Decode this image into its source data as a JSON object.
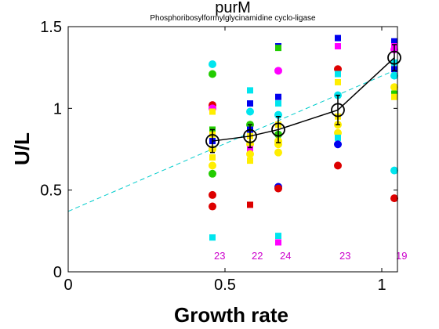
{
  "chart_data": {
    "type": "scatter",
    "title": "purM",
    "subtitle": "Phosphoribosylformylglycinamidine cyclo-ligase",
    "xlabel": "Growth rate",
    "ylabel": "U/L",
    "xlim": [
      0,
      1.05
    ],
    "ylim": [
      0,
      1.5
    ],
    "xticks": [
      0,
      0.5,
      1
    ],
    "xtick_labels": [
      "0",
      "0.5",
      "1"
    ],
    "yticks": [
      0,
      0.5,
      1,
      1.5
    ],
    "ytick_labels": [
      "0",
      "0.5",
      "1",
      "1.5"
    ],
    "grid": false,
    "legend": "none",
    "mean_line": {
      "x": [
        0.46,
        0.58,
        0.67,
        0.86,
        1.04
      ],
      "y": [
        0.8,
        0.83,
        0.87,
        0.99,
        1.31
      ],
      "err": [
        0.07,
        0.07,
        0.08,
        0.09,
        0.08
      ],
      "color": "#000000"
    },
    "fit_line": {
      "x": [
        0,
        1.05
      ],
      "y": [
        0.37,
        1.24
      ],
      "color": "#00cccc"
    },
    "counts": {
      "x": [
        0.46,
        0.58,
        0.67,
        0.86,
        1.04
      ],
      "labels": [
        "23",
        "22",
        "24",
        "23",
        "19"
      ],
      "y": 0.1,
      "color": "#cc00cc"
    },
    "points": [
      {
        "x": 0.46,
        "y": 1.27,
        "shape": "circle",
        "color": "#00e5ee"
      },
      {
        "x": 0.46,
        "y": 1.21,
        "shape": "circle",
        "color": "#22cc00"
      },
      {
        "x": 0.46,
        "y": 1.02,
        "shape": "circle",
        "color": "#dd0000"
      },
      {
        "x": 0.46,
        "y": 1.0,
        "shape": "circle",
        "color": "#ff00ff"
      },
      {
        "x": 0.46,
        "y": 0.98,
        "shape": "square",
        "color": "#ffee00"
      },
      {
        "x": 0.46,
        "y": 0.87,
        "shape": "square",
        "color": "#22cc00"
      },
      {
        "x": 0.46,
        "y": 0.84,
        "shape": "square",
        "color": "#ffee00"
      },
      {
        "x": 0.46,
        "y": 0.8,
        "shape": "square",
        "color": "#0000ee"
      },
      {
        "x": 0.46,
        "y": 0.75,
        "shape": "circle",
        "color": "#ffee00"
      },
      {
        "x": 0.46,
        "y": 0.7,
        "shape": "square",
        "color": "#ffee00"
      },
      {
        "x": 0.46,
        "y": 0.65,
        "shape": "circle",
        "color": "#ffee00"
      },
      {
        "x": 0.46,
        "y": 0.6,
        "shape": "circle",
        "color": "#22cc00"
      },
      {
        "x": 0.46,
        "y": 0.47,
        "shape": "circle",
        "color": "#dd0000"
      },
      {
        "x": 0.46,
        "y": 0.4,
        "shape": "circle",
        "color": "#dd0000"
      },
      {
        "x": 0.46,
        "y": 0.21,
        "shape": "square",
        "color": "#00e5ee"
      },
      {
        "x": 0.58,
        "y": 1.11,
        "shape": "square",
        "color": "#00e5ee"
      },
      {
        "x": 0.58,
        "y": 1.03,
        "shape": "square",
        "color": "#0000ee"
      },
      {
        "x": 0.58,
        "y": 0.98,
        "shape": "circle",
        "color": "#00e5ee"
      },
      {
        "x": 0.58,
        "y": 0.9,
        "shape": "circle",
        "color": "#22cc00"
      },
      {
        "x": 0.58,
        "y": 0.87,
        "shape": "square",
        "color": "#0000ee"
      },
      {
        "x": 0.58,
        "y": 0.83,
        "shape": "square",
        "color": "#ffee00"
      },
      {
        "x": 0.58,
        "y": 0.78,
        "shape": "circle",
        "color": "#ffee00"
      },
      {
        "x": 0.58,
        "y": 0.75,
        "shape": "square",
        "color": "#ff00ff"
      },
      {
        "x": 0.58,
        "y": 0.72,
        "shape": "circle",
        "color": "#ffee00"
      },
      {
        "x": 0.58,
        "y": 0.68,
        "shape": "square",
        "color": "#ffee00"
      },
      {
        "x": 0.58,
        "y": 0.41,
        "shape": "square",
        "color": "#dd0000"
      },
      {
        "x": 0.67,
        "y": 1.38,
        "shape": "square",
        "color": "#0000ee"
      },
      {
        "x": 0.67,
        "y": 1.37,
        "shape": "square",
        "color": "#22cc00"
      },
      {
        "x": 0.67,
        "y": 1.23,
        "shape": "circle",
        "color": "#ff00ff"
      },
      {
        "x": 0.67,
        "y": 1.07,
        "shape": "square",
        "color": "#0000ee"
      },
      {
        "x": 0.67,
        "y": 1.03,
        "shape": "square",
        "color": "#00e5ee"
      },
      {
        "x": 0.67,
        "y": 0.96,
        "shape": "circle",
        "color": "#00e5ee"
      },
      {
        "x": 0.67,
        "y": 0.9,
        "shape": "square",
        "color": "#ffee00"
      },
      {
        "x": 0.67,
        "y": 0.84,
        "shape": "circle",
        "color": "#22cc00"
      },
      {
        "x": 0.67,
        "y": 0.8,
        "shape": "circle",
        "color": "#ffee00"
      },
      {
        "x": 0.67,
        "y": 0.78,
        "shape": "circle",
        "color": "#ffee00"
      },
      {
        "x": 0.67,
        "y": 0.73,
        "shape": "circle",
        "color": "#ffee00"
      },
      {
        "x": 0.67,
        "y": 0.52,
        "shape": "circle",
        "color": "#0000ee"
      },
      {
        "x": 0.67,
        "y": 0.51,
        "shape": "circle",
        "color": "#dd0000"
      },
      {
        "x": 0.67,
        "y": 0.22,
        "shape": "square",
        "color": "#00e5ee"
      },
      {
        "x": 0.67,
        "y": 0.18,
        "shape": "square",
        "color": "#ff00ff"
      },
      {
        "x": 0.86,
        "y": 1.43,
        "shape": "square",
        "color": "#0000ee"
      },
      {
        "x": 0.86,
        "y": 1.38,
        "shape": "square",
        "color": "#ff00ff"
      },
      {
        "x": 0.86,
        "y": 1.24,
        "shape": "circle",
        "color": "#dd0000"
      },
      {
        "x": 0.86,
        "y": 1.21,
        "shape": "square",
        "color": "#00e5ee"
      },
      {
        "x": 0.86,
        "y": 1.16,
        "shape": "square",
        "color": "#ffee00"
      },
      {
        "x": 0.86,
        "y": 1.08,
        "shape": "circle",
        "color": "#00e5ee"
      },
      {
        "x": 0.86,
        "y": 0.95,
        "shape": "square",
        "color": "#ffee00"
      },
      {
        "x": 0.86,
        "y": 0.9,
        "shape": "circle",
        "color": "#ffee00"
      },
      {
        "x": 0.86,
        "y": 0.85,
        "shape": "circle",
        "color": "#ffee00"
      },
      {
        "x": 0.86,
        "y": 0.82,
        "shape": "square",
        "color": "#00e5ee"
      },
      {
        "x": 0.86,
        "y": 0.78,
        "shape": "circle",
        "color": "#0000ee"
      },
      {
        "x": 0.86,
        "y": 0.65,
        "shape": "circle",
        "color": "#dd0000"
      },
      {
        "x": 1.04,
        "y": 1.41,
        "shape": "square",
        "color": "#0000ee"
      },
      {
        "x": 1.04,
        "y": 1.38,
        "shape": "square",
        "color": "#ff00ff"
      },
      {
        "x": 1.04,
        "y": 1.36,
        "shape": "circle",
        "color": "#ff00ff"
      },
      {
        "x": 1.04,
        "y": 1.28,
        "shape": "square",
        "color": "#00e5ee"
      },
      {
        "x": 1.04,
        "y": 1.24,
        "shape": "square",
        "color": "#0000ee"
      },
      {
        "x": 1.04,
        "y": 1.2,
        "shape": "circle",
        "color": "#00e5ee"
      },
      {
        "x": 1.04,
        "y": 1.13,
        "shape": "circle",
        "color": "#ffee00"
      },
      {
        "x": 1.04,
        "y": 1.09,
        "shape": "square",
        "color": "#22cc00"
      },
      {
        "x": 1.04,
        "y": 1.07,
        "shape": "square",
        "color": "#ffee00"
      },
      {
        "x": 1.04,
        "y": 0.62,
        "shape": "circle",
        "color": "#00e5ee"
      },
      {
        "x": 1.04,
        "y": 0.45,
        "shape": "circle",
        "color": "#dd0000"
      }
    ]
  }
}
